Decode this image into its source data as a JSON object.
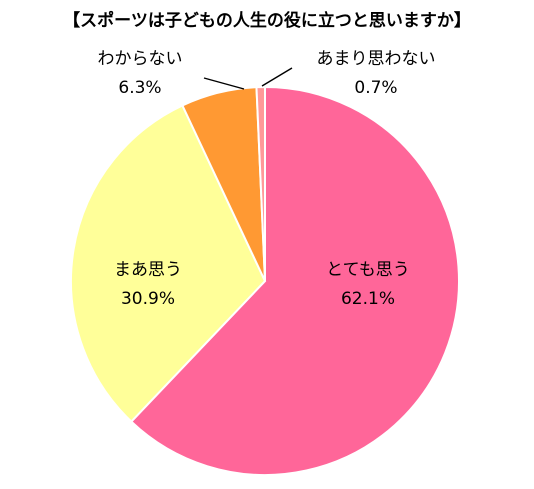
{
  "chart_data": {
    "type": "pie",
    "title": "【スポーツは子どもの人生の役に立つと思いますか】",
    "slices": [
      {
        "label": "とても思う",
        "value": 62.1,
        "value_text": "62.1%",
        "color": "#ff6699"
      },
      {
        "label": "まあ思う",
        "value": 30.9,
        "value_text": "30.9%",
        "color": "#ffff99"
      },
      {
        "label": "わからない",
        "value": 6.3,
        "value_text": "6.3%",
        "color": "#ff9933"
      },
      {
        "label": "あまり思わない",
        "value": 0.7,
        "value_text": "0.7%",
        "color": "#ff9999"
      }
    ],
    "start_angle": "12 o'clock",
    "direction": "clockwise",
    "legend": "none",
    "slice_border_color": "#ffffff"
  }
}
